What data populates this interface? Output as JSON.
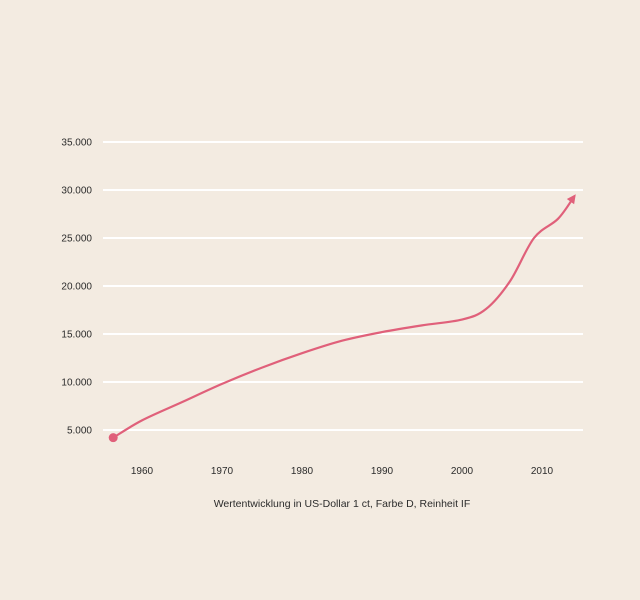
{
  "chart_data": {
    "type": "line",
    "title": "",
    "xlabel": "Wertentwicklung in US-Dollar 1 ct, Farbe D, Reinheit IF",
    "ylabel": "",
    "xlim": [
      1953,
      2018
    ],
    "ylim": [
      0,
      35000
    ],
    "grid": true,
    "x_ticks": [
      1960,
      1970,
      1980,
      1990,
      2000,
      2010
    ],
    "x_tick_labels": [
      "1960",
      "1970",
      "1980",
      "1990",
      "2000",
      "2010"
    ],
    "y_ticks": [
      5000,
      10000,
      15000,
      20000,
      25000,
      30000,
      35000
    ],
    "y_tick_labels": [
      "5.000",
      "10.000",
      "15.000",
      "20.000",
      "25.000",
      "30.000",
      "35.000"
    ],
    "series": [
      {
        "x": [
          1956.4,
          1960,
          1965,
          1970,
          1975,
          1980,
          1985,
          1990,
          1995,
          2000,
          2003,
          2006,
          2009,
          2012,
          2014
        ],
        "y": [
          4200,
          6000,
          7900,
          9800,
          11500,
          13000,
          14300,
          15200,
          15900,
          16500,
          17600,
          20500,
          25000,
          27000,
          29300
        ],
        "color": "#e0607a",
        "start_marker": "dot",
        "end_marker": "arrow"
      }
    ]
  },
  "colors": {
    "background": "#f3ebe1",
    "grid": "#ffffff",
    "line": "#e0607a"
  }
}
